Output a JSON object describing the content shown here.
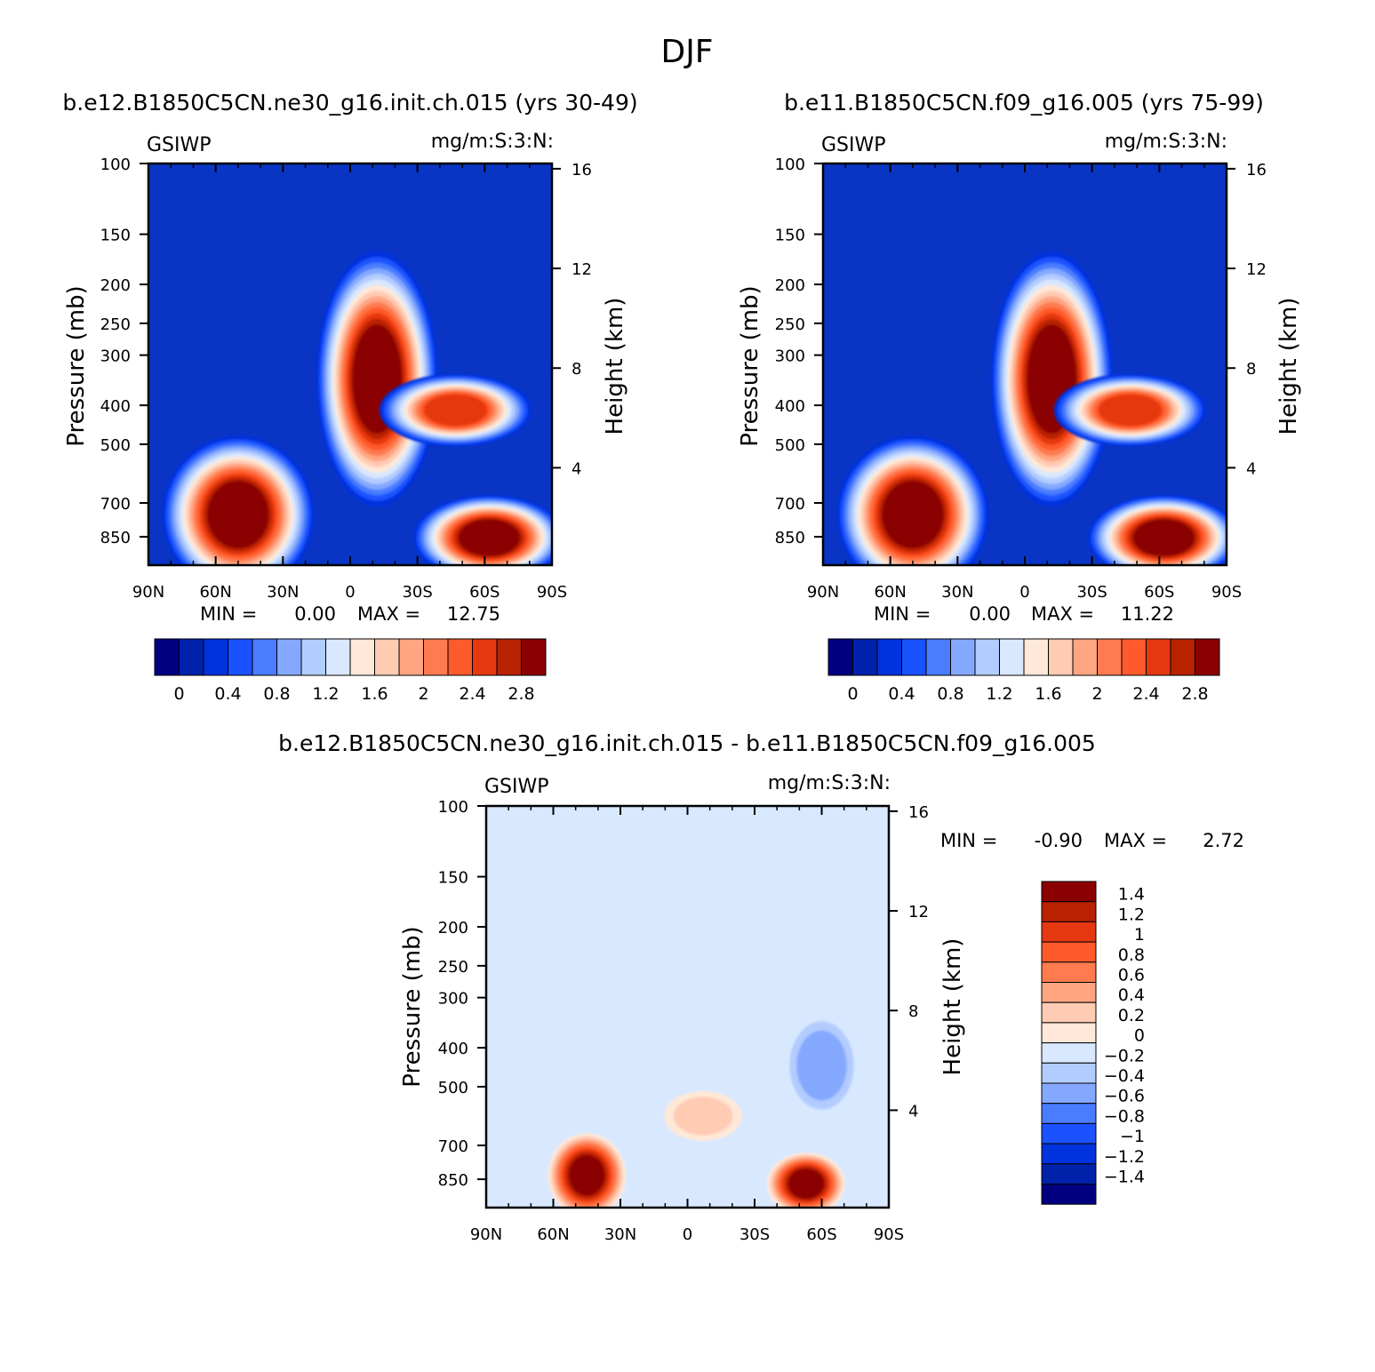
{
  "figure_title": "DJF",
  "colors": {
    "scale_abs": [
      "#000080",
      "#0022aa",
      "#0033dd",
      "#1a52ff",
      "#4a7cff",
      "#85a8ff",
      "#b3ccff",
      "#d8e8ff",
      "#ffe8d8",
      "#ffcbb3",
      "#ffa582",
      "#ff7a4f",
      "#ff5a2c",
      "#e63810",
      "#b82200",
      "#8b0000"
    ],
    "scale_diff": [
      "#000080",
      "#0022aa",
      "#0033dd",
      "#1a52ff",
      "#4a7cff",
      "#85a8ff",
      "#b3ccff",
      "#d8e8ff",
      "#ffe8d8",
      "#ffcbb3",
      "#ffa582",
      "#ff7a4f",
      "#ff5a2c",
      "#e63810",
      "#b82200",
      "#8b0000"
    ],
    "background_field": "#0f3fcc"
  },
  "panels": [
    {
      "title": "b.e12.B1850C5CN.ne30_g16.init.ch.015 (yrs 30-49)",
      "var_label": "GSIWP",
      "units_label": "mg/m:S:3:N:",
      "stats": {
        "min_label": "MIN =",
        "min": "0.00",
        "max_label": "MAX =",
        "max": "12.75"
      }
    },
    {
      "title": "b.e11.B1850C5CN.f09_g16.005 (yrs 75-99)",
      "var_label": "GSIWP",
      "units_label": "mg/m:S:3:N:",
      "stats": {
        "min_label": "MIN =",
        "min": "0.00",
        "max_label": "MAX =",
        "max": "11.22"
      }
    },
    {
      "title": "b.e12.B1850C5CN.ne30_g16.init.ch.015 - b.e11.B1850C5CN.f09_g16.005",
      "var_label": "GSIWP",
      "units_label": "mg/m:S:3:N:",
      "stats": {
        "min_label": "MIN =",
        "min": "-0.90",
        "max_label": "MAX =",
        "max": "2.72"
      }
    }
  ],
  "chart_data": [
    {
      "type": "heatmap",
      "title": "b.e12.B1850C5CN.ne30_g16.init.ch.015 (yrs 30-49)",
      "xlabel": "",
      "ylabel": "Pressure (mb)",
      "y2label": "Height (km)",
      "x_ticks": [
        "90N",
        "60N",
        "30N",
        "0",
        "30S",
        "60S",
        "90S"
      ],
      "x_range": [
        90,
        -90
      ],
      "y_ticks": [
        100,
        150,
        200,
        250,
        300,
        400,
        500,
        700,
        850
      ],
      "y_range_mb": [
        100,
        1000
      ],
      "y_scale": "log",
      "y2_ticks": [
        16,
        12,
        8,
        4
      ],
      "min": 0.0,
      "max": 12.75,
      "colorbar_labels": [
        "0",
        "0.4",
        "0.8",
        "1.2",
        "1.6",
        "2",
        "2.4",
        "2.8"
      ],
      "features": [
        {
          "name": "tropical maximum",
          "lat_center": -12,
          "p_top_mb": 215,
          "p_bottom_mb": 550,
          "level": 2.8
        },
        {
          "name": "NH mid-latitude low-level maximum",
          "lat_center": 50,
          "p_top_mb": 560,
          "p_bottom_mb": 1000,
          "level": 2.8
        },
        {
          "name": "SH mid-latitude low-level maximum",
          "lat_center": -62,
          "p_top_mb": 730,
          "p_bottom_mb": 1000,
          "level": 2.8
        },
        {
          "name": "SH secondary maximum",
          "lat_center": -47,
          "p_top_mb": 360,
          "p_bottom_mb": 470,
          "level": 1.8
        }
      ]
    },
    {
      "type": "heatmap",
      "title": "b.e11.B1850C5CN.f09_g16.005 (yrs 75-99)",
      "xlabel": "",
      "ylabel": "Pressure (mb)",
      "y2label": "Height (km)",
      "x_ticks": [
        "90N",
        "60N",
        "30N",
        "0",
        "30S",
        "60S",
        "90S"
      ],
      "x_range": [
        90,
        -90
      ],
      "y_ticks": [
        100,
        150,
        200,
        250,
        300,
        400,
        500,
        700,
        850
      ],
      "y_range_mb": [
        100,
        1000
      ],
      "y_scale": "log",
      "y2_ticks": [
        16,
        12,
        8,
        4
      ],
      "min": 0.0,
      "max": 11.22,
      "colorbar_labels": [
        "0",
        "0.4",
        "0.8",
        "1.2",
        "1.6",
        "2",
        "2.4",
        "2.8"
      ],
      "features": [
        {
          "name": "tropical maximum",
          "lat_center": -12,
          "p_top_mb": 215,
          "p_bottom_mb": 550,
          "level": 2.8
        },
        {
          "name": "NH mid-latitude low-level maximum",
          "lat_center": 50,
          "p_top_mb": 560,
          "p_bottom_mb": 1000,
          "level": 2.8
        },
        {
          "name": "SH mid-latitude low-level maximum",
          "lat_center": -62,
          "p_top_mb": 730,
          "p_bottom_mb": 1000,
          "level": 2.8
        },
        {
          "name": "SH secondary maximum",
          "lat_center": -47,
          "p_top_mb": 360,
          "p_bottom_mb": 470,
          "level": 1.8
        }
      ]
    },
    {
      "type": "heatmap",
      "title": "b.e12.B1850C5CN.ne30_g16.init.ch.015 - b.e11.B1850C5CN.f09_g16.005",
      "xlabel": "",
      "ylabel": "Pressure (mb)",
      "y2label": "Height (km)",
      "x_ticks": [
        "90N",
        "60N",
        "30N",
        "0",
        "30S",
        "60S",
        "90S"
      ],
      "x_range": [
        90,
        -90
      ],
      "y_ticks": [
        100,
        150,
        200,
        250,
        300,
        400,
        500,
        700,
        850
      ],
      "y_range_mb": [
        100,
        1000
      ],
      "y_scale": "log",
      "y2_ticks": [
        16,
        12,
        8,
        4
      ],
      "min": -0.9,
      "max": 2.72,
      "colorbar_labels": [
        "1.4",
        "1.2",
        "1",
        "0.8",
        "0.6",
        "0.4",
        "0.2",
        "0",
        "-0.2",
        "-0.4",
        "-0.6",
        "-0.8",
        "-1",
        "-1.2",
        "-1.4"
      ],
      "features": [
        {
          "name": "NH low-level positive maximum",
          "lat_center": 45,
          "p_top_mb": 690,
          "p_bottom_mb": 1000,
          "level": 1.4
        },
        {
          "name": "SH low-level positive maximum",
          "lat_center": -53,
          "p_top_mb": 760,
          "p_bottom_mb": 1000,
          "level": 1.4
        },
        {
          "name": "tropical positive patch",
          "lat_center": -7,
          "p_top_mb": 530,
          "p_bottom_mb": 660,
          "level": 0.2
        },
        {
          "name": "SH negative patch",
          "lat_center": -60,
          "p_top_mb": 350,
          "p_bottom_mb": 560,
          "level": -0.4
        }
      ]
    }
  ]
}
